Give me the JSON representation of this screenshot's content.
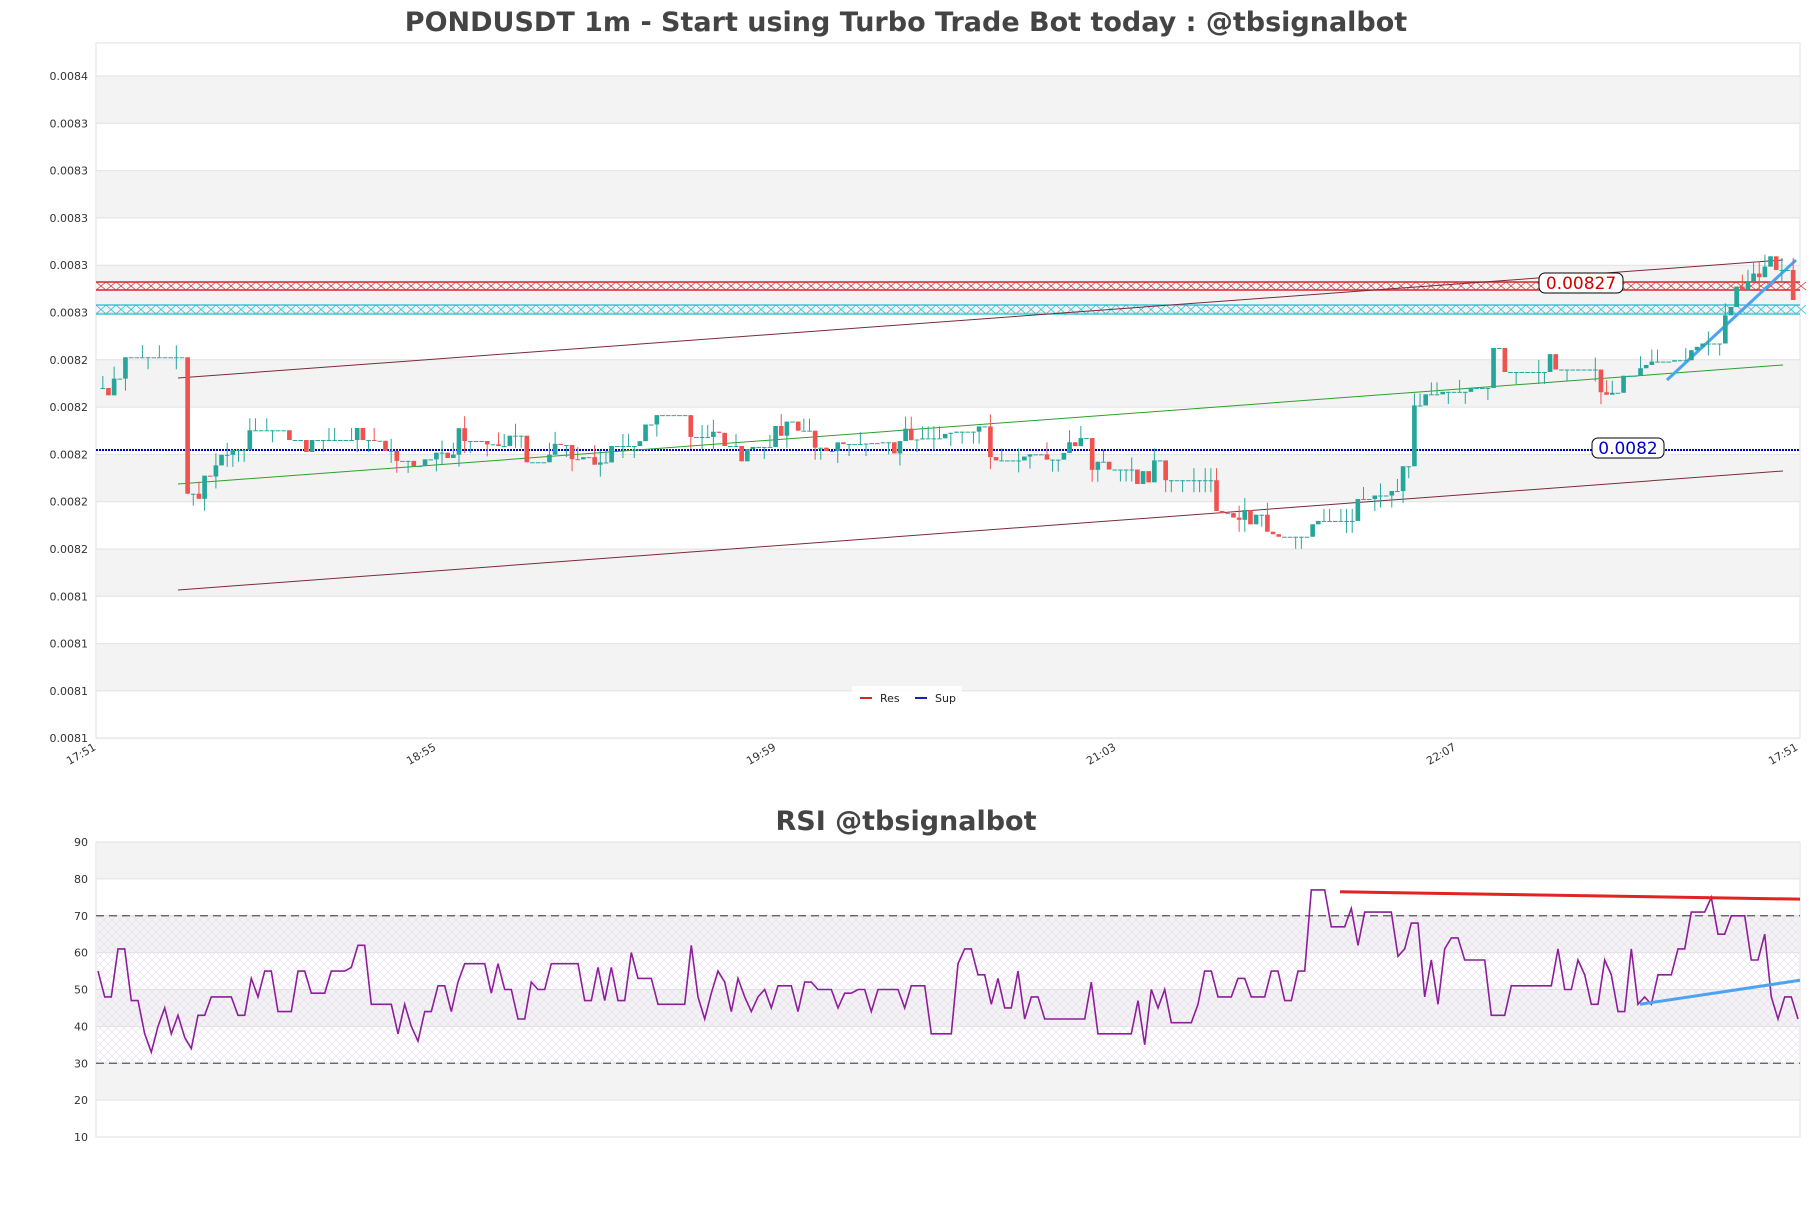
{
  "price_chart": {
    "title": "PONDUSDT 1m - Start using Turbo Trade Bot today : @tbsignalbot",
    "y_tick_labels": [
      "0.0084",
      "0.0083",
      "0.0083",
      "0.0083",
      "0.0083",
      "0.0083",
      "0.0082",
      "0.0082",
      "0.0082",
      "0.0082",
      "0.0082",
      "0.0081",
      "0.0081",
      "0.0081",
      "0.0081"
    ],
    "x_tick_labels": [
      "17:51",
      "18:55",
      "19:59",
      "21:03",
      "22:07",
      "17:51"
    ],
    "resistance_label": "0.00827",
    "support_label": "0.0082",
    "legend": [
      {
        "label": "Res",
        "color": "#d62728"
      },
      {
        "label": "Sup",
        "color": "#1f1fb4"
      }
    ],
    "colors": {
      "up": "#26a69a",
      "down": "#ef5350",
      "res": "#d62728",
      "sup": "#0000cc",
      "cyan": "#17becf",
      "trend": "#7b2b3a",
      "mid": "#2ca02c",
      "blue_trend": "#4da3f0"
    }
  },
  "rsi_chart": {
    "title": "RSI @tbsignalbot",
    "y_tick_labels": [
      "90",
      "80",
      "70",
      "60",
      "50",
      "40",
      "30",
      "20",
      "10"
    ],
    "colors": {
      "line": "#8e1e9b",
      "res_trend": "#e32222",
      "sup_trend": "#4da3f0"
    }
  },
  "chart_data": [
    {
      "type": "candlestick",
      "title": "PONDUSDT 1m - Start using Turbo Trade Bot today : @tbsignalbot",
      "ylim": [
        0.00806,
        0.00842
      ],
      "x_tick_labels": [
        "17:51",
        "18:55",
        "19:59",
        "21:03",
        "22:07",
        "17:51"
      ],
      "resistance": 0.00827,
      "support": 0.0082,
      "series_legend": [
        "Res",
        "Sup"
      ],
      "candles_count": 300,
      "price_range_shown": [
        0.00812,
        0.00832
      ]
    },
    {
      "type": "line",
      "title": "RSI @tbsignalbot",
      "ylim": [
        10,
        90
      ],
      "reference_lines": [
        30,
        70
      ],
      "values": [
        55,
        48,
        48,
        61,
        61,
        47,
        47,
        38,
        33,
        40,
        45,
        38,
        43,
        37,
        34,
        43,
        43,
        48,
        48,
        48,
        48,
        43,
        43,
        53,
        48,
        55,
        55,
        44,
        44,
        44,
        55,
        55,
        49,
        49,
        49,
        55,
        55,
        55,
        56,
        62,
        62,
        46,
        46,
        46,
        46,
        38,
        46,
        40,
        36,
        44,
        44,
        51,
        51,
        44,
        52,
        57,
        57,
        57,
        57,
        49,
        57,
        50,
        50,
        42,
        42,
        52,
        50,
        50,
        57,
        57,
        57,
        57,
        57,
        47,
        47,
        56,
        47,
        56,
        47,
        47,
        60,
        53,
        53,
        53,
        46,
        46,
        46,
        46,
        46,
        62,
        48,
        42,
        49,
        55,
        52,
        44,
        53,
        48,
        44,
        48,
        50,
        45,
        51,
        51,
        51,
        44,
        52,
        52,
        50,
        50,
        50,
        45,
        49,
        49,
        50,
        50,
        44,
        50,
        50,
        50,
        50,
        45,
        51,
        51,
        51,
        38,
        38,
        38,
        38,
        57,
        61,
        61,
        54,
        54,
        46,
        53,
        45,
        45,
        55,
        42,
        48,
        48,
        42,
        42,
        42,
        42,
        42,
        42,
        42,
        52,
        38,
        38,
        38,
        38,
        38,
        38,
        47,
        35,
        50,
        45,
        50,
        41,
        41,
        41,
        41,
        46,
        55,
        55,
        48,
        48,
        48,
        53,
        53,
        48,
        48,
        48,
        55,
        55,
        47,
        47,
        55,
        55,
        77,
        77,
        77,
        67,
        67,
        67,
        72,
        62,
        71,
        71,
        71,
        71,
        71,
        59,
        61,
        68,
        68,
        48,
        58,
        46,
        61,
        64,
        64,
        58,
        58,
        58,
        58,
        43,
        43,
        43,
        51,
        51,
        51,
        51,
        51,
        51,
        51,
        61,
        50,
        50,
        58,
        54,
        46,
        46,
        58,
        54,
        44,
        44,
        61,
        46,
        48,
        46,
        54,
        54,
        54,
        61,
        61,
        71,
        71,
        71,
        75,
        65,
        65,
        70,
        70,
        70,
        58,
        58,
        65,
        48,
        42,
        48,
        48,
        42
      ]
    }
  ]
}
